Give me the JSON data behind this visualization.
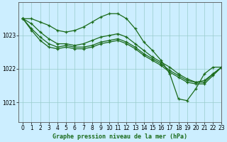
{
  "bg_color": "#cceeff",
  "grid_color": "#99cccc",
  "line_color": "#1a6b1a",
  "title": "Graphe pression niveau de la mer (hPa)",
  "xlim": [
    -0.5,
    23
  ],
  "ylim": [
    1020.4,
    1024.0
  ],
  "yticks": [
    1021,
    1022,
    1023
  ],
  "xticks": [
    0,
    1,
    2,
    3,
    4,
    5,
    6,
    7,
    8,
    9,
    10,
    11,
    12,
    13,
    14,
    15,
    16,
    17,
    18,
    19,
    20,
    21,
    22,
    23
  ],
  "series": [
    [
      1023.5,
      1023.5,
      1023.4,
      1023.3,
      1023.15,
      1023.1,
      1023.15,
      1023.25,
      1023.4,
      1023.55,
      1023.65,
      1023.65,
      1023.5,
      1023.2,
      1022.8,
      1022.55,
      1022.25,
      1021.85,
      1021.1,
      1021.05,
      1021.4,
      1021.85,
      1022.05,
      1022.05
    ],
    [
      1023.5,
      1023.35,
      1023.1,
      1022.9,
      1022.75,
      1022.75,
      1022.7,
      1022.75,
      1022.85,
      1022.95,
      1023.0,
      1023.05,
      1022.95,
      1022.75,
      1022.55,
      1022.35,
      1022.2,
      1022.05,
      1021.85,
      1021.7,
      1021.6,
      1021.65,
      1021.85,
      1022.05
    ],
    [
      1023.5,
      1023.2,
      1022.95,
      1022.75,
      1022.65,
      1022.7,
      1022.65,
      1022.65,
      1022.7,
      1022.8,
      1022.85,
      1022.9,
      1022.8,
      1022.65,
      1022.45,
      1022.3,
      1022.15,
      1021.95,
      1021.8,
      1021.65,
      1021.6,
      1021.6,
      1021.85,
      1022.05
    ],
    [
      1023.5,
      1023.15,
      1022.85,
      1022.65,
      1022.6,
      1022.65,
      1022.6,
      1022.6,
      1022.65,
      1022.75,
      1022.8,
      1022.85,
      1022.75,
      1022.6,
      1022.4,
      1022.25,
      1022.1,
      1021.9,
      1021.75,
      1021.6,
      1021.55,
      1021.55,
      1021.8,
      1022.05
    ]
  ]
}
